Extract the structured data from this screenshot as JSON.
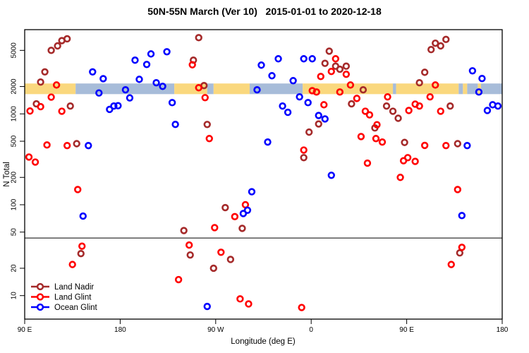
{
  "chart_data": {
    "type": "scatter",
    "title": "50N-55N March (Ver 10)   2015-01-01 to 2020-12-18",
    "xlabel": "Longitude (deg E)",
    "ylabel": "N Total",
    "x_axis": {
      "range_display_deg": [
        90,
        540
      ],
      "ticks": [
        {
          "v": 90,
          "label": "90 E"
        },
        {
          "v": 180,
          "label": "180"
        },
        {
          "v": 270,
          "label": "90 W"
        },
        {
          "v": 360,
          "label": "0"
        },
        {
          "v": 450,
          "label": "90 E"
        },
        {
          "v": 540,
          "label": "180"
        }
      ]
    },
    "y_axis": {
      "scale": "log",
      "range": [
        5.5,
        8400
      ],
      "ticks": [
        10,
        20,
        50,
        100,
        200,
        500,
        1000,
        2000,
        5000
      ]
    },
    "threshold_line": {
      "value": 43,
      "color": "#000000"
    },
    "surface_band": {
      "value_low": 1650,
      "value_high": 2160,
      "land_color": "#FAD87E",
      "ocean_color": "#A7BCD9",
      "segments": [
        {
          "from": 90,
          "to": 138,
          "surface": "land"
        },
        {
          "from": 138,
          "to": 231,
          "surface": "ocean"
        },
        {
          "from": 231,
          "to": 262,
          "surface": "land"
        },
        {
          "from": 262,
          "to": 268,
          "surface": "ocean"
        },
        {
          "from": 268,
          "to": 302,
          "surface": "land"
        },
        {
          "from": 302,
          "to": 352,
          "surface": "ocean"
        },
        {
          "from": 352,
          "to": 437,
          "surface": "land"
        },
        {
          "from": 437,
          "to": 440,
          "surface": "ocean"
        },
        {
          "from": 440,
          "to": 499,
          "surface": "land"
        },
        {
          "from": 499,
          "to": 503,
          "surface": "ocean"
        },
        {
          "from": 503,
          "to": 507,
          "surface": "land"
        },
        {
          "from": 507,
          "to": 517,
          "surface": "ocean"
        },
        {
          "from": 517,
          "to": 520,
          "surface": "land"
        },
        {
          "from": 520,
          "to": 540,
          "surface": "ocean"
        }
      ]
    },
    "series": [
      {
        "name": "Land Nadir",
        "color": "#A52A2A",
        "points": [
          [
            115,
            5000
          ],
          [
            121,
            5600
          ],
          [
            125,
            6400
          ],
          [
            130,
            6700
          ],
          [
            109,
            2900
          ],
          [
            105,
            2240
          ],
          [
            101,
            1290
          ],
          [
            133,
            1220
          ],
          [
            139,
            470
          ],
          [
            143,
            29
          ],
          [
            249,
            3900
          ],
          [
            254,
            6900
          ],
          [
            259,
            2050
          ],
          [
            262,
            765
          ],
          [
            240,
            52
          ],
          [
            246,
            28
          ],
          [
            268,
            20
          ],
          [
            279,
            93
          ],
          [
            284,
            25
          ],
          [
            295,
            55
          ],
          [
            353,
            330
          ],
          [
            358,
            630
          ],
          [
            367,
            775
          ],
          [
            373,
            3600
          ],
          [
            377,
            4900
          ],
          [
            383,
            3350
          ],
          [
            387,
            3100
          ],
          [
            393,
            3350
          ],
          [
            398,
            1290
          ],
          [
            409,
            1840
          ],
          [
            420,
            700
          ],
          [
            431,
            1220
          ],
          [
            437,
            1070
          ],
          [
            442,
            895
          ],
          [
            448,
            485
          ],
          [
            462,
            2200
          ],
          [
            467,
            2870
          ],
          [
            473,
            5100
          ],
          [
            477,
            6000
          ],
          [
            482,
            5600
          ],
          [
            487,
            6600
          ],
          [
            491,
            1220
          ],
          [
            498,
            470
          ],
          [
            500,
            29.5
          ]
        ]
      },
      {
        "name": "Land Glint",
        "color": "#FF0000",
        "points": [
          [
            94,
            335
          ],
          [
            95,
            1075
          ],
          [
            100,
            295
          ],
          [
            105,
            1200
          ],
          [
            111,
            455
          ],
          [
            115,
            1530
          ],
          [
            120,
            2080
          ],
          [
            125,
            1070
          ],
          [
            130,
            448
          ],
          [
            135,
            22
          ],
          [
            140,
            147
          ],
          [
            144,
            35
          ],
          [
            235,
            15
          ],
          [
            245,
            36
          ],
          [
            248,
            3470
          ],
          [
            254,
            1940
          ],
          [
            260,
            1510
          ],
          [
            264,
            535
          ],
          [
            269,
            56
          ],
          [
            275,
            30
          ],
          [
            288,
            74
          ],
          [
            293,
            9.2
          ],
          [
            298,
            100
          ],
          [
            301,
            8.1
          ],
          [
            351,
            7.4
          ],
          [
            353,
            400
          ],
          [
            361,
            1800
          ],
          [
            365,
            1740
          ],
          [
            369,
            2580
          ],
          [
            372,
            1260
          ],
          [
            379,
            2930
          ],
          [
            383,
            4040
          ],
          [
            387,
            1740
          ],
          [
            393,
            2730
          ],
          [
            397,
            2080
          ],
          [
            403,
            1480
          ],
          [
            407,
            563
          ],
          [
            411,
            1070
          ],
          [
            413,
            287
          ],
          [
            415,
            975
          ],
          [
            421,
            535
          ],
          [
            422,
            760
          ],
          [
            427,
            490
          ],
          [
            432,
            1540
          ],
          [
            444,
            200
          ],
          [
            447,
            305
          ],
          [
            451,
            330
          ],
          [
            452,
            1090
          ],
          [
            458,
            1280
          ],
          [
            458,
            300
          ],
          [
            462,
            1220
          ],
          [
            467,
            450
          ],
          [
            472,
            1540
          ],
          [
            477,
            2080
          ],
          [
            482,
            1070
          ],
          [
            487,
            448
          ],
          [
            492,
            22
          ],
          [
            498,
            147
          ],
          [
            502,
            34
          ]
        ]
      },
      {
        "name": "Ocean Glint",
        "color": "#0000FF",
        "points": [
          [
            145,
            75
          ],
          [
            150,
            448
          ],
          [
            154,
            2900
          ],
          [
            160,
            1700
          ],
          [
            164,
            2440
          ],
          [
            170,
            1120
          ],
          [
            174,
            1220
          ],
          [
            178,
            1230
          ],
          [
            185,
            1840
          ],
          [
            189,
            1500
          ],
          [
            194,
            3900
          ],
          [
            198,
            2400
          ],
          [
            205,
            3500
          ],
          [
            209,
            4570
          ],
          [
            214,
            2200
          ],
          [
            220,
            2010
          ],
          [
            224,
            4830
          ],
          [
            229,
            1330
          ],
          [
            232,
            766
          ],
          [
            262,
            7.6
          ],
          [
            296,
            80
          ],
          [
            300,
            87
          ],
          [
            304,
            139
          ],
          [
            309,
            1840
          ],
          [
            313,
            3440
          ],
          [
            319,
            490
          ],
          [
            323,
            2630
          ],
          [
            329,
            4040
          ],
          [
            333,
            1220
          ],
          [
            338,
            1040
          ],
          [
            343,
            2320
          ],
          [
            349,
            1540
          ],
          [
            353,
            4040
          ],
          [
            357,
            1330
          ],
          [
            361,
            4040
          ],
          [
            367,
            960
          ],
          [
            373,
            880
          ],
          [
            379,
            211
          ],
          [
            502,
            76
          ],
          [
            507,
            448
          ],
          [
            512,
            2980
          ],
          [
            518,
            1740
          ],
          [
            521,
            2450
          ],
          [
            526,
            1090
          ],
          [
            531,
            1260
          ],
          [
            536,
            1220
          ]
        ]
      }
    ],
    "legend": {
      "position": "bottom-left"
    }
  }
}
